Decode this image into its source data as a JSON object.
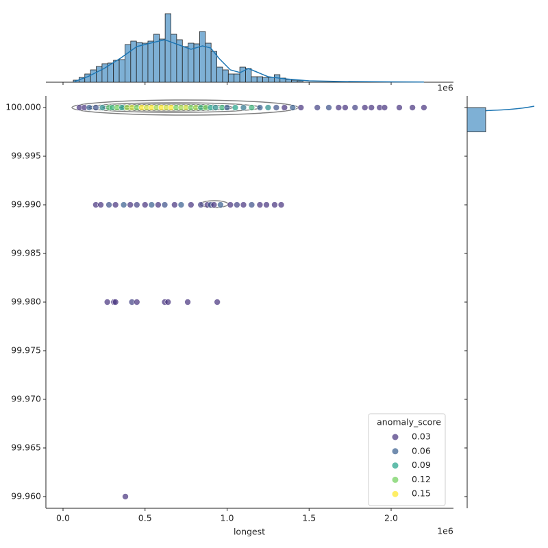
{
  "chart_data": [
    {
      "type": "scatter",
      "x_label": "longest",
      "x_offset_label": "1e6",
      "xlim": [
        -104400,
        2380000
      ],
      "ylim": [
        99.9588,
        100.0012
      ],
      "xticks": [
        {
          "value": 0,
          "label": "0.0"
        },
        {
          "value": 500000,
          "label": "0.5"
        },
        {
          "value": 1000000,
          "label": "1.0"
        },
        {
          "value": 1500000,
          "label": "1.5"
        },
        {
          "value": 2000000,
          "label": "2.0"
        }
      ],
      "yticks": [
        {
          "value": 99.96,
          "label": "99.960"
        },
        {
          "value": 99.965,
          "label": "99.965"
        },
        {
          "value": 99.97,
          "label": "99.970"
        },
        {
          "value": 99.975,
          "label": "99.975"
        },
        {
          "value": 99.98,
          "label": "99.980"
        },
        {
          "value": 99.985,
          "label": "99.985"
        },
        {
          "value": 99.99,
          "label": "99.990"
        },
        {
          "value": 99.995,
          "label": "99.995"
        },
        {
          "value": 100,
          "label": "100.000"
        }
      ],
      "legend": {
        "title": "anomaly_score",
        "position": "lower right",
        "entries": [
          {
            "value": 0.03,
            "color": "#46327e"
          },
          {
            "value": 0.06,
            "color": "#365c8d"
          },
          {
            "value": 0.09,
            "color": "#1fa187"
          },
          {
            "value": 0.12,
            "color": "#6ece58"
          },
          {
            "value": 0.15,
            "color": "#fde725"
          }
        ]
      },
      "points": {
        "x": [
          100000,
          130000,
          160000,
          200000,
          240000,
          280000,
          300000,
          330000,
          360000,
          390000,
          420000,
          450000,
          480000,
          510000,
          540000,
          570000,
          600000,
          630000,
          660000,
          690000,
          720000,
          750000,
          780000,
          810000,
          840000,
          870000,
          900000,
          930000,
          970000,
          1000000,
          1050000,
          1100000,
          1150000,
          1200000,
          1250000,
          1300000,
          1350000,
          1400000,
          1450000,
          1550000,
          1620000,
          1680000,
          1720000,
          1780000,
          1840000,
          1880000,
          1930000,
          1960000,
          2050000,
          2130000,
          2200000,
          200000,
          230000,
          280000,
          320000,
          370000,
          410000,
          450000,
          500000,
          540000,
          580000,
          620000,
          680000,
          720000,
          780000,
          840000,
          880000,
          900000,
          920000,
          960000,
          1020000,
          1060000,
          1100000,
          1150000,
          1200000,
          1240000,
          1290000,
          1330000,
          270000,
          310000,
          320000,
          420000,
          450000,
          620000,
          640000,
          760000,
          940000,
          380000
        ],
        "y": [
          100,
          100,
          100,
          100,
          100,
          100,
          100,
          100,
          100,
          100,
          100,
          100,
          100,
          100,
          100,
          100,
          100,
          100,
          100,
          100,
          100,
          100,
          100,
          100,
          100,
          100,
          100,
          100,
          100,
          100,
          100,
          100,
          100,
          100,
          100,
          100,
          100,
          100,
          100,
          100,
          100,
          100,
          100,
          100,
          100,
          100,
          100,
          100,
          100,
          100,
          100,
          99.99,
          99.99,
          99.99,
          99.99,
          99.99,
          99.99,
          99.99,
          99.99,
          99.99,
          99.99,
          99.99,
          99.99,
          99.99,
          99.99,
          99.99,
          99.99,
          99.99,
          99.99,
          99.99,
          99.99,
          99.99,
          99.99,
          99.99,
          99.99,
          99.99,
          99.99,
          99.99,
          99.98,
          99.98,
          99.98,
          99.98,
          99.98,
          99.98,
          99.98,
          99.98,
          99.98,
          99.96
        ],
        "hue": [
          0.02,
          0.03,
          0.06,
          0.05,
          0.08,
          0.11,
          0.1,
          0.12,
          0.09,
          0.13,
          0.14,
          0.12,
          0.15,
          0.14,
          0.15,
          0.13,
          0.15,
          0.14,
          0.15,
          0.12,
          0.13,
          0.14,
          0.12,
          0.13,
          0.1,
          0.12,
          0.09,
          0.08,
          0.1,
          0.06,
          0.09,
          0.07,
          0.1,
          0.06,
          0.08,
          0.05,
          0.03,
          0.06,
          0.02,
          0.04,
          0.05,
          0.03,
          0.02,
          0.04,
          0.02,
          0.03,
          0.02,
          0.03,
          0.03,
          0.03,
          0.03,
          0.02,
          0.03,
          0.05,
          0.03,
          0.06,
          0.02,
          0.04,
          0.03,
          0.06,
          0.02,
          0.05,
          0.03,
          0.06,
          0.02,
          0.04,
          0.02,
          0.05,
          0.03,
          0.06,
          0.02,
          0.04,
          0.03,
          0.05,
          0.02,
          0.03,
          0.02,
          0.03,
          0.03,
          0.03,
          0.02,
          0.04,
          0.03,
          0.03,
          0.03,
          0.03,
          0.03,
          0.03
        ]
      }
    },
    {
      "type": "histogram",
      "orientation": "vertical",
      "x_offset_label": "1e6",
      "color": "#7eb0d5",
      "line_color": "#1f77b4",
      "xticks": [
        0,
        500000,
        1000000,
        1500000,
        2000000
      ],
      "ylim": [
        0,
        102
      ],
      "bins": [
        62600,
        97600,
        132600,
        167600,
        202600,
        237600,
        272600,
        307600,
        342600,
        377600,
        412600,
        447600,
        482600,
        517600,
        552600,
        587600,
        622600,
        657600,
        692600,
        727600,
        762600,
        797600,
        832600,
        867600,
        902600,
        937600,
        972600,
        1007600,
        1042600,
        1077600,
        1112600,
        1147600,
        1182600,
        1217600,
        1252600,
        1287600,
        1322600,
        1357600,
        1392600,
        1427600,
        1462600
      ],
      "counts": [
        3,
        7,
        12,
        18,
        23,
        27,
        28,
        32,
        33,
        55,
        60,
        58,
        57,
        60,
        70,
        63,
        100,
        70,
        62,
        52,
        57,
        56,
        74,
        57,
        45,
        22,
        18,
        12,
        12,
        22,
        20,
        8,
        8,
        7,
        7,
        11,
        6,
        4,
        3,
        2
      ],
      "kde": {
        "x": [
          70000,
          150000,
          250000,
          350000,
          450000,
          550000,
          620000,
          700000,
          780000,
          850000,
          900000,
          950000,
          1020000,
          1080000,
          1130000,
          1180000,
          1250000,
          1350000,
          1500000,
          1700000,
          2000000,
          2200000
        ],
        "y": [
          1,
          8,
          20,
          35,
          52,
          58,
          62,
          55,
          48,
          53,
          50,
          35,
          18,
          14,
          20,
          15,
          8,
          5,
          2,
          1,
          0.5,
          0.2
        ]
      }
    },
    {
      "type": "histogram",
      "orientation": "horizontal",
      "color": "#7eb0d5",
      "xlim": [
        0,
        98
      ],
      "bins": [
        99.9975,
        100.0
      ],
      "counts": [
        27
      ]
    }
  ]
}
